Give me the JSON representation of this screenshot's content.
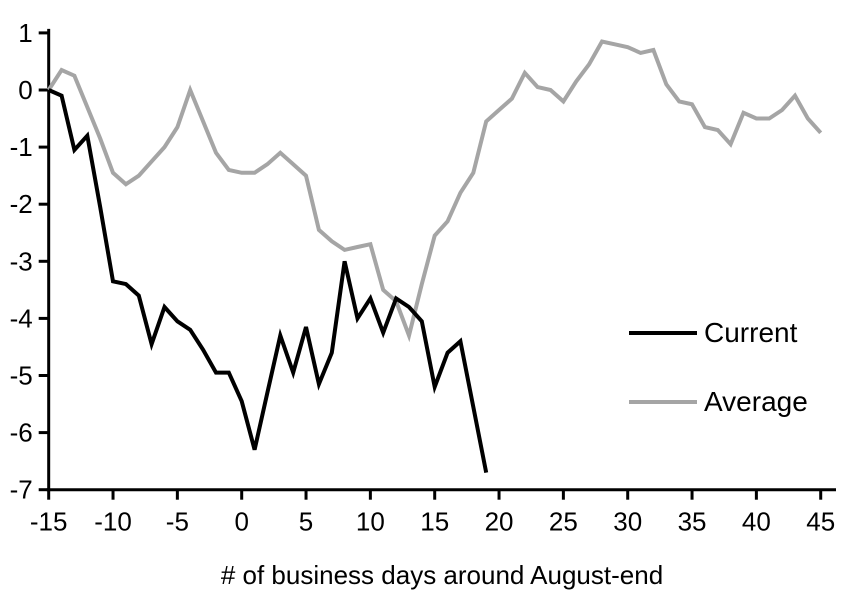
{
  "chart_data": {
    "type": "line",
    "title": "",
    "xlabel": "# of business days around August-end",
    "ylabel": "",
    "xlim": [
      -15,
      45
    ],
    "ylim": [
      -7,
      1
    ],
    "x_ticks": [
      -15,
      -10,
      -5,
      0,
      5,
      10,
      15,
      20,
      25,
      30,
      35,
      40,
      45
    ],
    "y_ticks": [
      1,
      0,
      -1,
      -2,
      -3,
      -4,
      -5,
      -6,
      -7
    ],
    "grid": false,
    "legend_position": "right-middle",
    "x_step": 1,
    "series": [
      {
        "name": "Current",
        "color": "#000000",
        "x_start": -15,
        "values": [
          0,
          -0.1,
          -1.05,
          -0.8,
          -2.05,
          -3.35,
          -3.4,
          -3.6,
          -4.45,
          -3.8,
          -4.05,
          -4.2,
          -4.55,
          -4.95,
          -4.95,
          -5.45,
          -6.3,
          -5.3,
          -4.3,
          -4.95,
          -4.15,
          -5.15,
          -4.6,
          -3.0,
          -4.0,
          -3.65,
          -4.25,
          -3.65,
          -3.8,
          -4.05,
          -5.2,
          -4.6,
          -4.4,
          -5.55,
          -6.7
        ]
      },
      {
        "name": "Average",
        "color": "#a5a5a5",
        "x_start": -15,
        "values": [
          0,
          0.35,
          0.25,
          -0.3,
          -0.85,
          -1.45,
          -1.65,
          -1.5,
          -1.25,
          -1.0,
          -0.65,
          0.0,
          -0.55,
          -1.1,
          -1.4,
          -1.45,
          -1.45,
          -1.3,
          -1.1,
          -1.3,
          -1.5,
          -2.45,
          -2.65,
          -2.8,
          -2.75,
          -2.7,
          -3.5,
          -3.7,
          -4.3,
          -3.4,
          -2.55,
          -2.3,
          -1.8,
          -1.45,
          -0.55,
          -0.35,
          -0.15,
          0.3,
          0.05,
          0.0,
          -0.2,
          0.15,
          0.45,
          0.85,
          0.8,
          0.75,
          0.65,
          0.7,
          0.1,
          -0.2,
          -0.25,
          -0.65,
          -0.7,
          -0.95,
          -0.4,
          -0.5,
          -0.5,
          -0.35,
          -0.1,
          -0.5,
          -0.75
        ]
      }
    ],
    "axis_color": "#000000",
    "background_color": "#ffffff"
  }
}
